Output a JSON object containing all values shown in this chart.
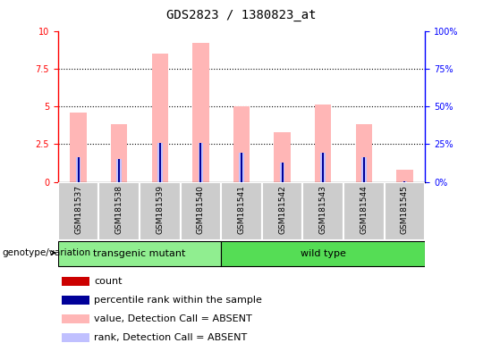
{
  "title": "GDS2823 / 1380823_at",
  "samples": [
    "GSM181537",
    "GSM181538",
    "GSM181539",
    "GSM181540",
    "GSM181541",
    "GSM181542",
    "GSM181543",
    "GSM181544",
    "GSM181545"
  ],
  "absent_value": [
    4.6,
    3.8,
    8.5,
    9.2,
    5.0,
    3.3,
    5.1,
    3.8,
    0.8
  ],
  "absent_rank": [
    1.6,
    1.5,
    2.6,
    2.6,
    1.9,
    1.3,
    1.9,
    1.6,
    0.05
  ],
  "percentile_rank": [
    1.6,
    1.5,
    2.6,
    2.6,
    1.9,
    1.3,
    1.9,
    1.6,
    0.05
  ],
  "groups": [
    {
      "label": "transgenic mutant",
      "indices": [
        0,
        1,
        2,
        3
      ],
      "color": "#90ee90"
    },
    {
      "label": "wild type",
      "indices": [
        4,
        5,
        6,
        7,
        8
      ],
      "color": "#55dd55"
    }
  ],
  "genotype_label": "genotype/variation",
  "ylim_left": [
    0,
    10
  ],
  "ylim_right": [
    0,
    100
  ],
  "yticks_left": [
    0,
    2.5,
    5.0,
    7.5,
    10
  ],
  "yticks_right": [
    0,
    25,
    50,
    75,
    100
  ],
  "color_count": "#cc0000",
  "color_rank": "#000099",
  "color_absent_value": "#ffb6b6",
  "color_absent_rank": "#c0c0ff",
  "bar_width": 0.4,
  "rank_bar_width": 0.08,
  "legend_items": [
    {
      "label": "count",
      "color": "#cc0000"
    },
    {
      "label": "percentile rank within the sample",
      "color": "#000099"
    },
    {
      "label": "value, Detection Call = ABSENT",
      "color": "#ffb6b6"
    },
    {
      "label": "rank, Detection Call = ABSENT",
      "color": "#c0c0ff"
    }
  ],
  "grid_lines": [
    2.5,
    5.0,
    7.5
  ],
  "sample_box_color": "#cccccc",
  "title_fontsize": 10,
  "tick_fontsize": 7,
  "legend_fontsize": 8
}
